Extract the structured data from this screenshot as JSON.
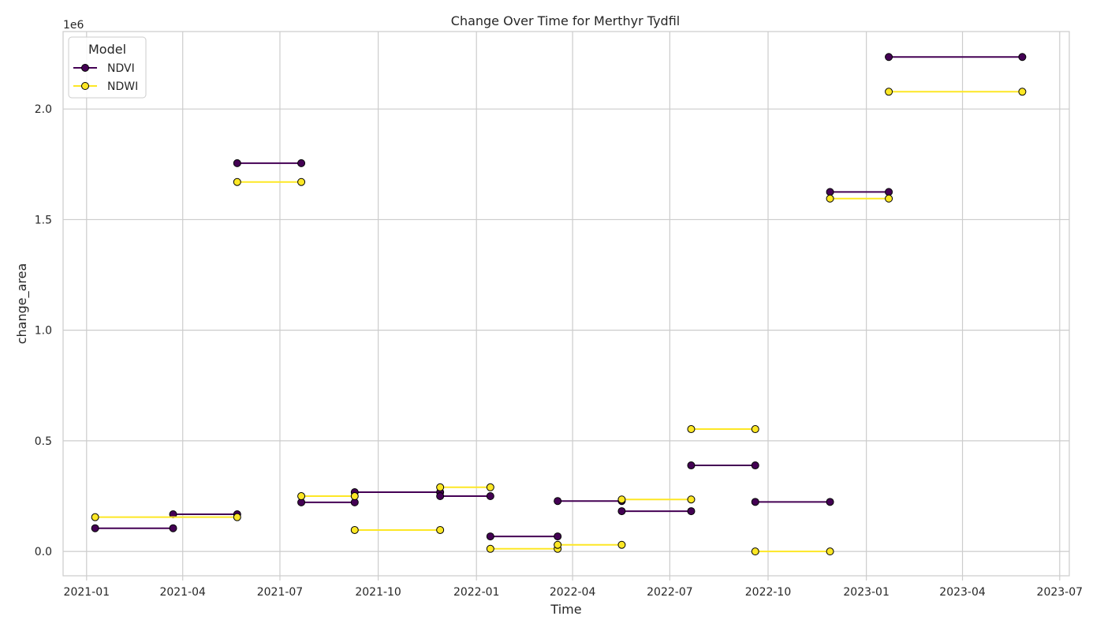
{
  "chart_data": {
    "type": "line",
    "title": "Change Over Time for Merthyr Tydfil",
    "xlabel": "Time",
    "ylabel": "change_area",
    "y_scale_label": "1e6",
    "xlim": [
      "2020-12-10",
      "2023-07-10"
    ],
    "ylim": [
      -0.11,
      2.35
    ],
    "x_ticks": [
      "2021-01",
      "2021-04",
      "2021-07",
      "2021-10",
      "2022-01",
      "2022-04",
      "2022-07",
      "2022-10",
      "2023-01",
      "2023-04",
      "2023-07"
    ],
    "x_tick_dates": [
      "2021-01-01",
      "2021-04-01",
      "2021-07-01",
      "2021-10-01",
      "2022-01-01",
      "2022-04-01",
      "2022-07-01",
      "2022-10-01",
      "2023-01-01",
      "2023-04-01",
      "2023-07-01"
    ],
    "y_ticks": [
      "0.0",
      "0.5",
      "1.0",
      "1.5",
      "2.0"
    ],
    "y_tick_values": [
      0.0,
      0.5,
      1.0,
      1.5,
      2.0
    ],
    "grid": true,
    "legend": {
      "title": "Model",
      "position": "top-left"
    },
    "series": [
      {
        "name": "NDVI",
        "color": "#440154",
        "segments": [
          [
            [
              "2021-01-09",
              0.105
            ],
            [
              "2021-03-23",
              0.105
            ]
          ],
          [
            [
              "2021-03-23",
              0.168
            ],
            [
              "2021-05-22",
              0.168
            ]
          ],
          [
            [
              "2021-05-22",
              1.755
            ],
            [
              "2021-07-21",
              1.755
            ]
          ],
          [
            [
              "2021-07-21",
              0.222
            ],
            [
              "2021-09-09",
              0.222
            ]
          ],
          [
            [
              "2021-09-09",
              0.268
            ],
            [
              "2021-11-28",
              0.268
            ]
          ],
          [
            [
              "2021-11-28",
              0.25
            ],
            [
              "2022-01-14",
              0.25
            ]
          ],
          [
            [
              "2022-01-14",
              0.068
            ],
            [
              "2022-03-18",
              0.068
            ]
          ],
          [
            [
              "2022-03-18",
              0.228
            ],
            [
              "2022-05-17",
              0.228
            ]
          ],
          [
            [
              "2022-05-17",
              0.182
            ],
            [
              "2022-07-21",
              0.182
            ]
          ],
          [
            [
              "2022-07-21",
              0.389
            ],
            [
              "2022-09-19",
              0.389
            ]
          ],
          [
            [
              "2022-09-19",
              0.224
            ],
            [
              "2022-11-28",
              0.224
            ]
          ],
          [
            [
              "2022-11-28",
              1.625
            ],
            [
              "2023-01-22",
              1.625
            ]
          ],
          [
            [
              "2023-01-22",
              2.235
            ],
            [
              "2023-05-27",
              2.235
            ]
          ]
        ]
      },
      {
        "name": "NDWI",
        "color": "#fde725",
        "segments": [
          [
            [
              "2021-01-09",
              0.155
            ],
            [
              "2021-05-22",
              0.155
            ]
          ],
          [
            [
              "2021-05-22",
              1.67
            ],
            [
              "2021-07-21",
              1.67
            ]
          ],
          [
            [
              "2021-07-21",
              0.25
            ],
            [
              "2021-09-09",
              0.25
            ]
          ],
          [
            [
              "2021-09-09",
              0.097
            ],
            [
              "2021-11-28",
              0.097
            ]
          ],
          [
            [
              "2021-11-28",
              0.29
            ],
            [
              "2022-01-14",
              0.29
            ]
          ],
          [
            [
              "2022-01-14",
              0.012
            ],
            [
              "2022-03-18",
              0.012
            ]
          ],
          [
            [
              "2022-03-18",
              0.03
            ],
            [
              "2022-05-17",
              0.03
            ]
          ],
          [
            [
              "2022-05-17",
              0.235
            ],
            [
              "2022-07-21",
              0.235
            ]
          ],
          [
            [
              "2022-07-21",
              0.553
            ],
            [
              "2022-09-19",
              0.553
            ]
          ],
          [
            [
              "2022-09-19",
              0.0
            ],
            [
              "2022-11-28",
              0.0
            ]
          ],
          [
            [
              "2022-11-28",
              1.595
            ],
            [
              "2023-01-22",
              1.595
            ]
          ],
          [
            [
              "2023-01-22",
              2.078
            ],
            [
              "2023-05-27",
              2.078
            ]
          ]
        ]
      }
    ]
  }
}
